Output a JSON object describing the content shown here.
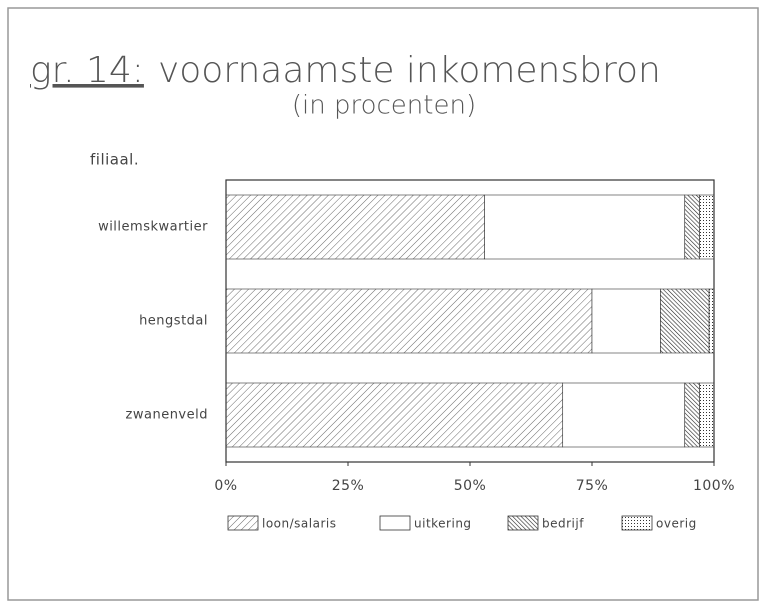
{
  "chart_data": {
    "type": "stacked-barh",
    "title_label": "gr. 14:",
    "title": "voornaamste inkomensbron",
    "subtitle": "(in procenten)",
    "y_label": "filiaal.",
    "categories": [
      "willemskwartier",
      "hengstdal",
      "zwanenveld"
    ],
    "series": [
      {
        "name": "loon/salaris",
        "color": "#333333",
        "pattern": "hatch",
        "values": [
          53,
          75,
          69
        ]
      },
      {
        "name": "uitkering",
        "color": "#333333",
        "pattern": "none",
        "values": [
          41,
          14,
          25
        ]
      },
      {
        "name": "bedrijf",
        "color": "#333333",
        "pattern": "dense-hatch",
        "values": [
          3,
          10,
          3
        ]
      },
      {
        "name": "overig",
        "color": "#333333",
        "pattern": "dots",
        "values": [
          3,
          1,
          3
        ]
      }
    ],
    "xlim": [
      0,
      100
    ],
    "xticks": [
      {
        "value": 0,
        "label": "0%"
      },
      {
        "value": 25,
        "label": "25%"
      },
      {
        "value": 50,
        "label": "50%"
      },
      {
        "value": 75,
        "label": "75%"
      },
      {
        "value": 100,
        "label": "100%"
      }
    ],
    "legend": "bottom"
  }
}
